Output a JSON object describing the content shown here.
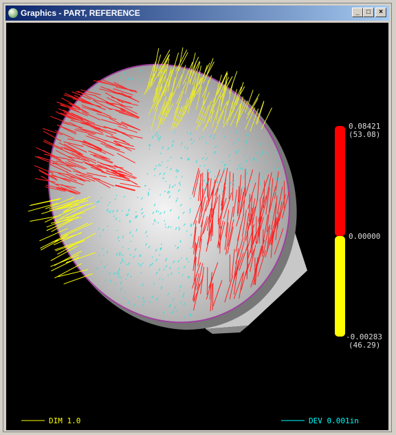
{
  "window": {
    "title": "Graphics - PART, REFERENCE"
  },
  "color_bar": {
    "max_value": "0.08421",
    "max_percent": "(53.08)",
    "mid_value": "0.00000",
    "min_value": "-0.00283",
    "min_percent": "(46.29)"
  },
  "footer": {
    "dim": "DIM 1.0",
    "dev": "DEV 0.001in"
  }
}
